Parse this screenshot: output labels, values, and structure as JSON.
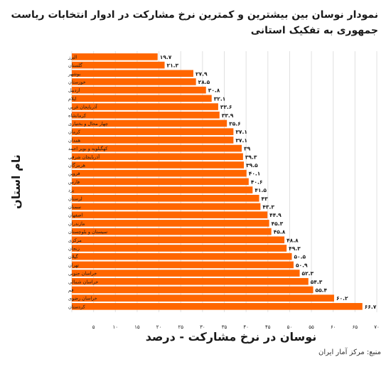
{
  "title": "نمودار نوسان بین بیشترین و کمترین نرخ مشارکت در ادوار انتخابات ریاست جمهوری به تفکیک استانی",
  "source": "منبع: مرکز آمار ایران",
  "colors": {
    "bar": "#ff6600",
    "grid": "#e0e0e0",
    "text": "#1a1a1a"
  },
  "chart_data": {
    "type": "bar",
    "orientation": "horizontal",
    "title": "نمودار نوسان بین بیشترین و کمترین نرخ مشارکت در ادوار انتخابات ریاست جمهوری به تفکیک استانی",
    "xlabel": "نوسان در نرخ مشارکت - درصد",
    "ylabel": "نام استان",
    "xlim": [
      0,
      70
    ],
    "x_ticks": [
      0,
      5,
      10,
      15,
      20,
      25,
      30,
      35,
      40,
      45,
      50,
      55,
      60,
      65,
      70
    ],
    "x_tick_labels": [
      "",
      "۵",
      "۱۰",
      "۱۵",
      "۲۰",
      "۲۵",
      "۳۰",
      "۳۵",
      "۴۰",
      "۴۵",
      "۵۰",
      "۵۵",
      "۶۰",
      "۶۵",
      "۷۰"
    ],
    "grid": true,
    "categories": [
      "البرز",
      "گلستان",
      "بوشهر",
      "خوزستان",
      "اردبیل",
      "ایلام",
      "آذربایجان غربی",
      "کرمانشاه",
      "چهار محال و بختیاری",
      "کرمان",
      "همدان",
      "کهگیلویه و بویر احمد",
      "آذربایجان شرقی",
      "هرمزگان",
      "قزوین",
      "فارس",
      "یزد",
      "لرستان",
      "سمنان",
      "اصفهان",
      "مازندران",
      "سیستان و بلوچستان",
      "مرکزی",
      "زنجان",
      "گیلان",
      "تهران",
      "خراسان جنوبی",
      "خراسان شمالی",
      "قم",
      "خراسان رضوی",
      "کردستان"
    ],
    "values": [
      19.7,
      21.3,
      27.9,
      28.5,
      30.8,
      32.1,
      33.6,
      33.9,
      35.6,
      37.1,
      37.1,
      39,
      39.3,
      39.5,
      40.1,
      40.6,
      41.5,
      43,
      43.3,
      44.9,
      45.3,
      45.8,
      48.8,
      49.3,
      50.5,
      50.9,
      52.3,
      54.3,
      55.4,
      60.2,
      66.7
    ],
    "value_labels": [
      "۱۹.۷",
      "۲۱.۳",
      "۲۷.۹",
      "۲۸.۵",
      "۳۰.۸",
      "۳۲.۱",
      "۳۳.۶",
      "۳۳.۹",
      "۳۵.۶",
      "۳۷.۱",
      "۳۷.۱",
      "۳۹",
      "۳۹.۳",
      "۳۹.۵",
      "۴۰.۱",
      "۴۰.۶",
      "۴۱.۵",
      "۴۳",
      "۴۳.۳",
      "۴۴.۹",
      "۴۵.۳",
      "۴۵.۸",
      "۴۸.۸",
      "۴۹.۳",
      "۵۰.۵",
      "۵۰.۹",
      "۵۲.۳",
      "۵۴.۳",
      "۵۵.۴",
      "۶۰.۲",
      "۶۶.۷"
    ]
  }
}
